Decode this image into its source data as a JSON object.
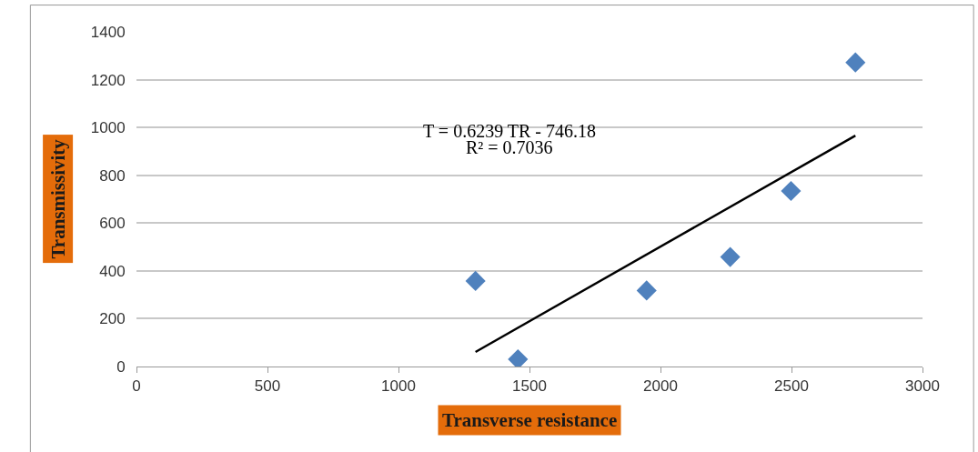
{
  "chart_data": {
    "type": "scatter",
    "xlabel": "Transverse resistance",
    "ylabel": "Transmissivity",
    "annotations": [
      "T = 0.6239 TR - 746.18",
      "R² = 0.7036"
    ],
    "series": [
      {
        "color": "#4f81bd",
        "marker": "diamond",
        "x": [
          1294,
          1456,
          1947,
          2266,
          2498,
          2744
        ],
        "values": [
          358,
          30,
          318,
          458,
          734,
          1272
        ]
      },
      {
        "type": "line",
        "color": "#000000",
        "marker": "none",
        "line_style": "solid",
        "x": [
          1294,
          2744
        ],
        "values": [
          61,
          966
        ]
      }
    ],
    "xlim": [
      0,
      3000
    ],
    "xticks": [
      0,
      500,
      1000,
      1500,
      2000,
      2500,
      3000
    ],
    "ylim": [
      0,
      1400
    ],
    "yticks": [
      0,
      200,
      400,
      600,
      800,
      1000,
      1200,
      1400
    ],
    "grid": "y"
  }
}
